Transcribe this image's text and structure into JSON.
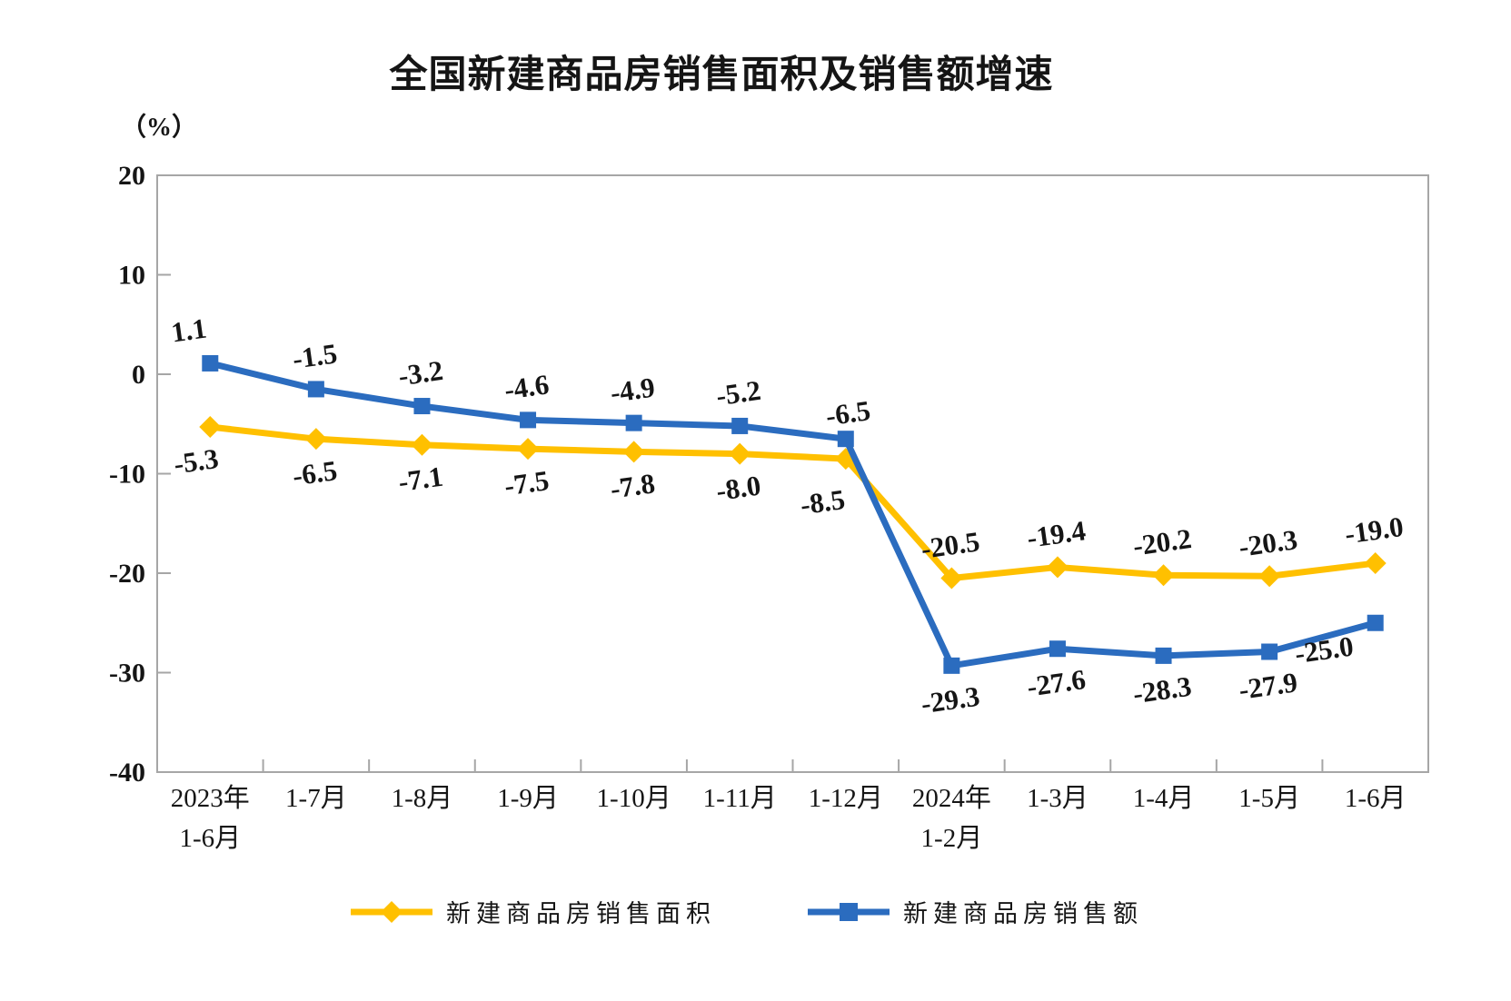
{
  "chart": {
    "title": "全国新建商品房销售面积及销售额增速",
    "y_axis_unit": "（%）",
    "legend": [
      {
        "label": "新建商品房销售面积",
        "color": "#FFC000",
        "marker": "diamond"
      },
      {
        "label": "新建商品房销售额",
        "color": "#2B6CBF",
        "marker": "square"
      }
    ]
  },
  "chart_data": {
    "type": "line",
    "title": "全国新建商品房销售面积及销售额增速",
    "ylabel": "（%）",
    "xlabel": "",
    "ylim": [
      -40,
      20
    ],
    "y_ticks": [
      20,
      10,
      0,
      -10,
      -20,
      -30,
      -40
    ],
    "grid": false,
    "legend_position": "bottom",
    "categories": [
      "2023年\n1-6月",
      "1-7月",
      "1-8月",
      "1-9月",
      "1-10月",
      "1-11月",
      "1-12月",
      "2024年\n1-2月",
      "1-3月",
      "1-4月",
      "1-5月",
      "1-6月"
    ],
    "series": [
      {
        "name": "新建商品房销售面积",
        "color": "#FFC000",
        "marker": "diamond",
        "values": [
          -5.3,
          -6.5,
          -7.1,
          -7.5,
          -7.8,
          -8.0,
          -8.5,
          -20.5,
          -19.4,
          -20.2,
          -20.3,
          -19.0
        ],
        "label_side": [
          "below",
          "below",
          "below",
          "below",
          "below",
          "below",
          "below",
          "above",
          "above",
          "above",
          "above",
          "above"
        ]
      },
      {
        "name": "新建商品房销售额",
        "color": "#2B6CBF",
        "marker": "square",
        "values": [
          1.1,
          -1.5,
          -3.2,
          -4.6,
          -4.9,
          -5.2,
          -6.5,
          -29.3,
          -27.6,
          -28.3,
          -27.9,
          -25.0
        ],
        "label_side": [
          "above",
          "above",
          "above",
          "above",
          "above",
          "above",
          "above",
          "below",
          "below",
          "below",
          "below",
          "below"
        ]
      }
    ]
  }
}
